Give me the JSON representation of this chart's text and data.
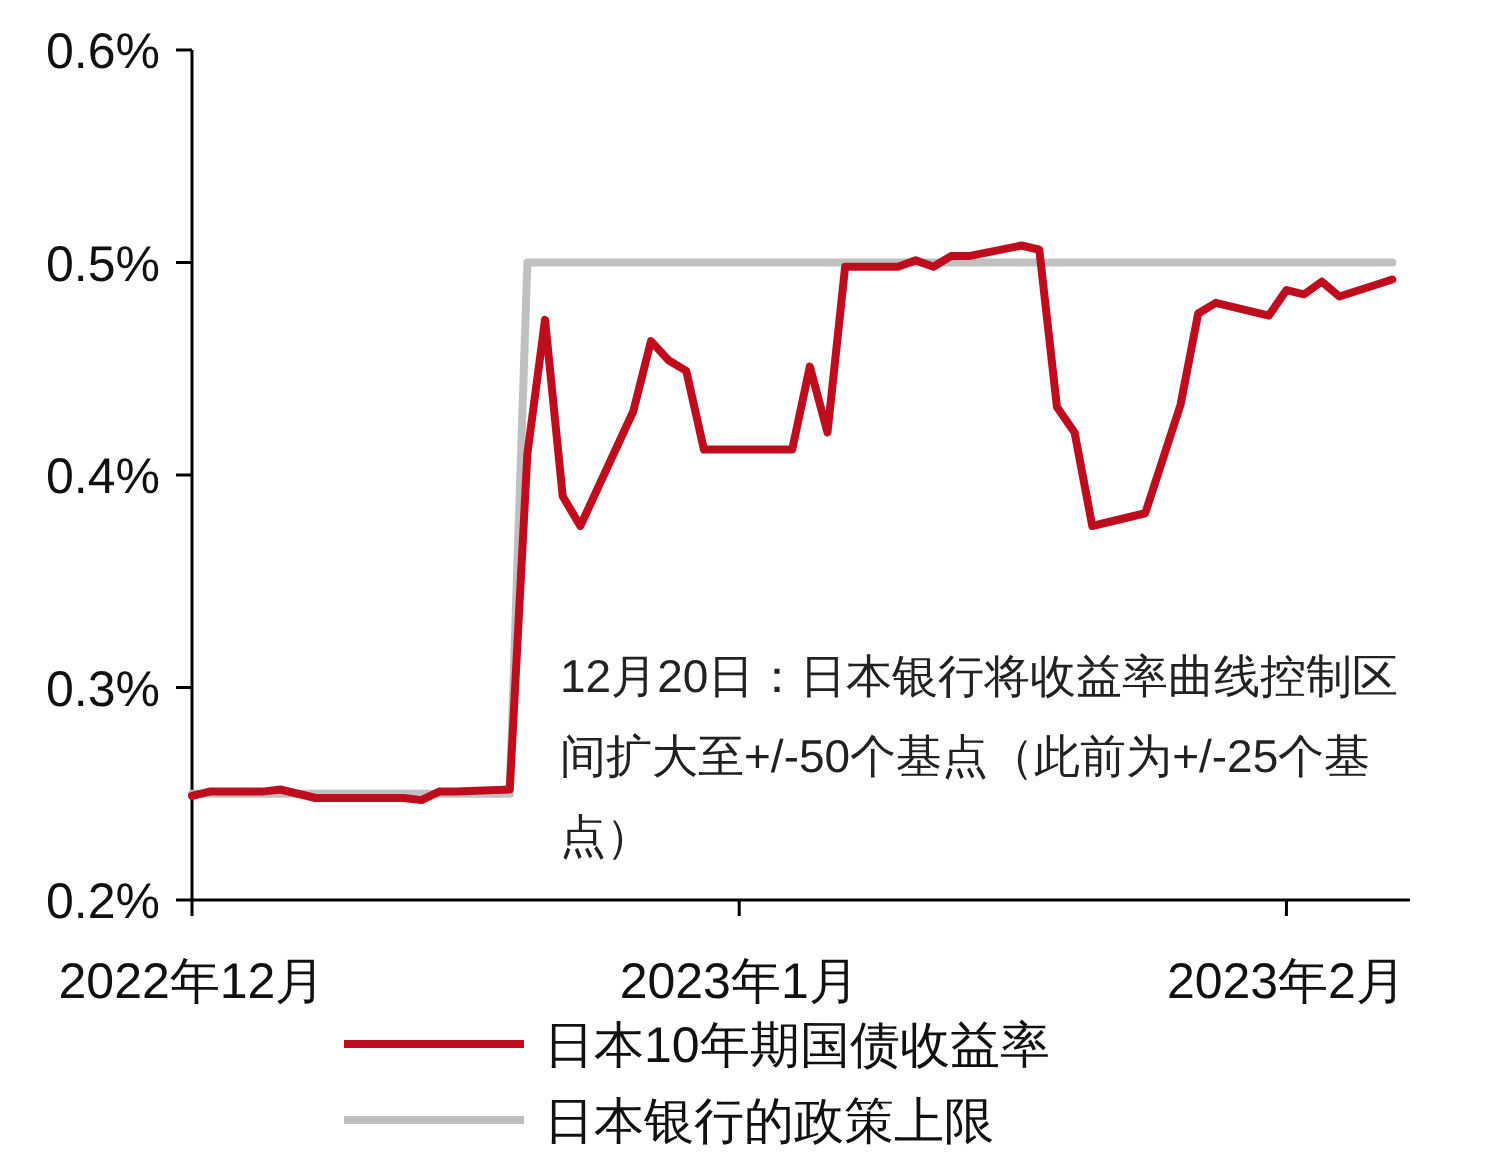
{
  "chart_data": {
    "type": "line",
    "ylim": [
      0.2,
      0.6
    ],
    "yticks": [
      {
        "value": 0.2,
        "label": "0.2%"
      },
      {
        "value": 0.3,
        "label": "0.3%"
      },
      {
        "value": 0.4,
        "label": "0.4%"
      },
      {
        "value": 0.5,
        "label": "0.5%"
      },
      {
        "value": 0.6,
        "label": "0.6%"
      }
    ],
    "xlim": [
      "2022-12-01",
      "2023-02-08"
    ],
    "xticks": [
      {
        "value": "2022-12-01",
        "label": "2022年12月"
      },
      {
        "value": "2023-01-01",
        "label": "2023年1月"
      },
      {
        "value": "2023-02-01",
        "label": "2023年2月"
      }
    ],
    "grid": false,
    "legend": "bottom",
    "series": [
      {
        "name": "日本10年期国债收益率",
        "color": "#c00d1e",
        "x": [
          "2022-12-01",
          "2022-12-02",
          "2022-12-05",
          "2022-12-06",
          "2022-12-07",
          "2022-12-08",
          "2022-12-09",
          "2022-12-12",
          "2022-12-13",
          "2022-12-14",
          "2022-12-15",
          "2022-12-16",
          "2022-12-19",
          "2022-12-20",
          "2022-12-21",
          "2022-12-22",
          "2022-12-23",
          "2022-12-26",
          "2022-12-27",
          "2022-12-28",
          "2022-12-29",
          "2022-12-30",
          "2023-01-04",
          "2023-01-05",
          "2023-01-06",
          "2023-01-07",
          "2023-01-10",
          "2023-01-11",
          "2023-01-12",
          "2023-01-13",
          "2023-01-14",
          "2023-01-17",
          "2023-01-18",
          "2023-01-19",
          "2023-01-20",
          "2023-01-21",
          "2023-01-24",
          "2023-01-26",
          "2023-01-27",
          "2023-01-28",
          "2023-01-31",
          "2023-02-01",
          "2023-02-02",
          "2023-02-03",
          "2023-02-04",
          "2023-02-07"
        ],
        "values": [
          0.249,
          0.251,
          0.251,
          0.252,
          0.25,
          0.248,
          0.248,
          0.248,
          0.248,
          0.247,
          0.251,
          0.251,
          0.252,
          0.41,
          0.473,
          0.39,
          0.376,
          0.43,
          0.463,
          0.454,
          0.449,
          0.412,
          0.412,
          0.451,
          0.42,
          0.498,
          0.498,
          0.501,
          0.498,
          0.503,
          0.503,
          0.508,
          0.506,
          0.432,
          0.42,
          0.376,
          0.382,
          0.433,
          0.476,
          0.481,
          0.475,
          0.487,
          0.485,
          0.491,
          0.484,
          0.492
        ]
      },
      {
        "name": "日本银行的政策上限",
        "color": "#c0c0c0",
        "x": [
          "2022-12-01",
          "2022-12-19",
          "2022-12-20",
          "2023-02-07"
        ],
        "values": [
          0.25,
          0.25,
          0.5,
          0.5
        ]
      }
    ],
    "annotations": [
      "12月20日：日本银行将收益率曲线控制区间扩大至+/-50个基点（此前为+/-25个基点）"
    ]
  }
}
